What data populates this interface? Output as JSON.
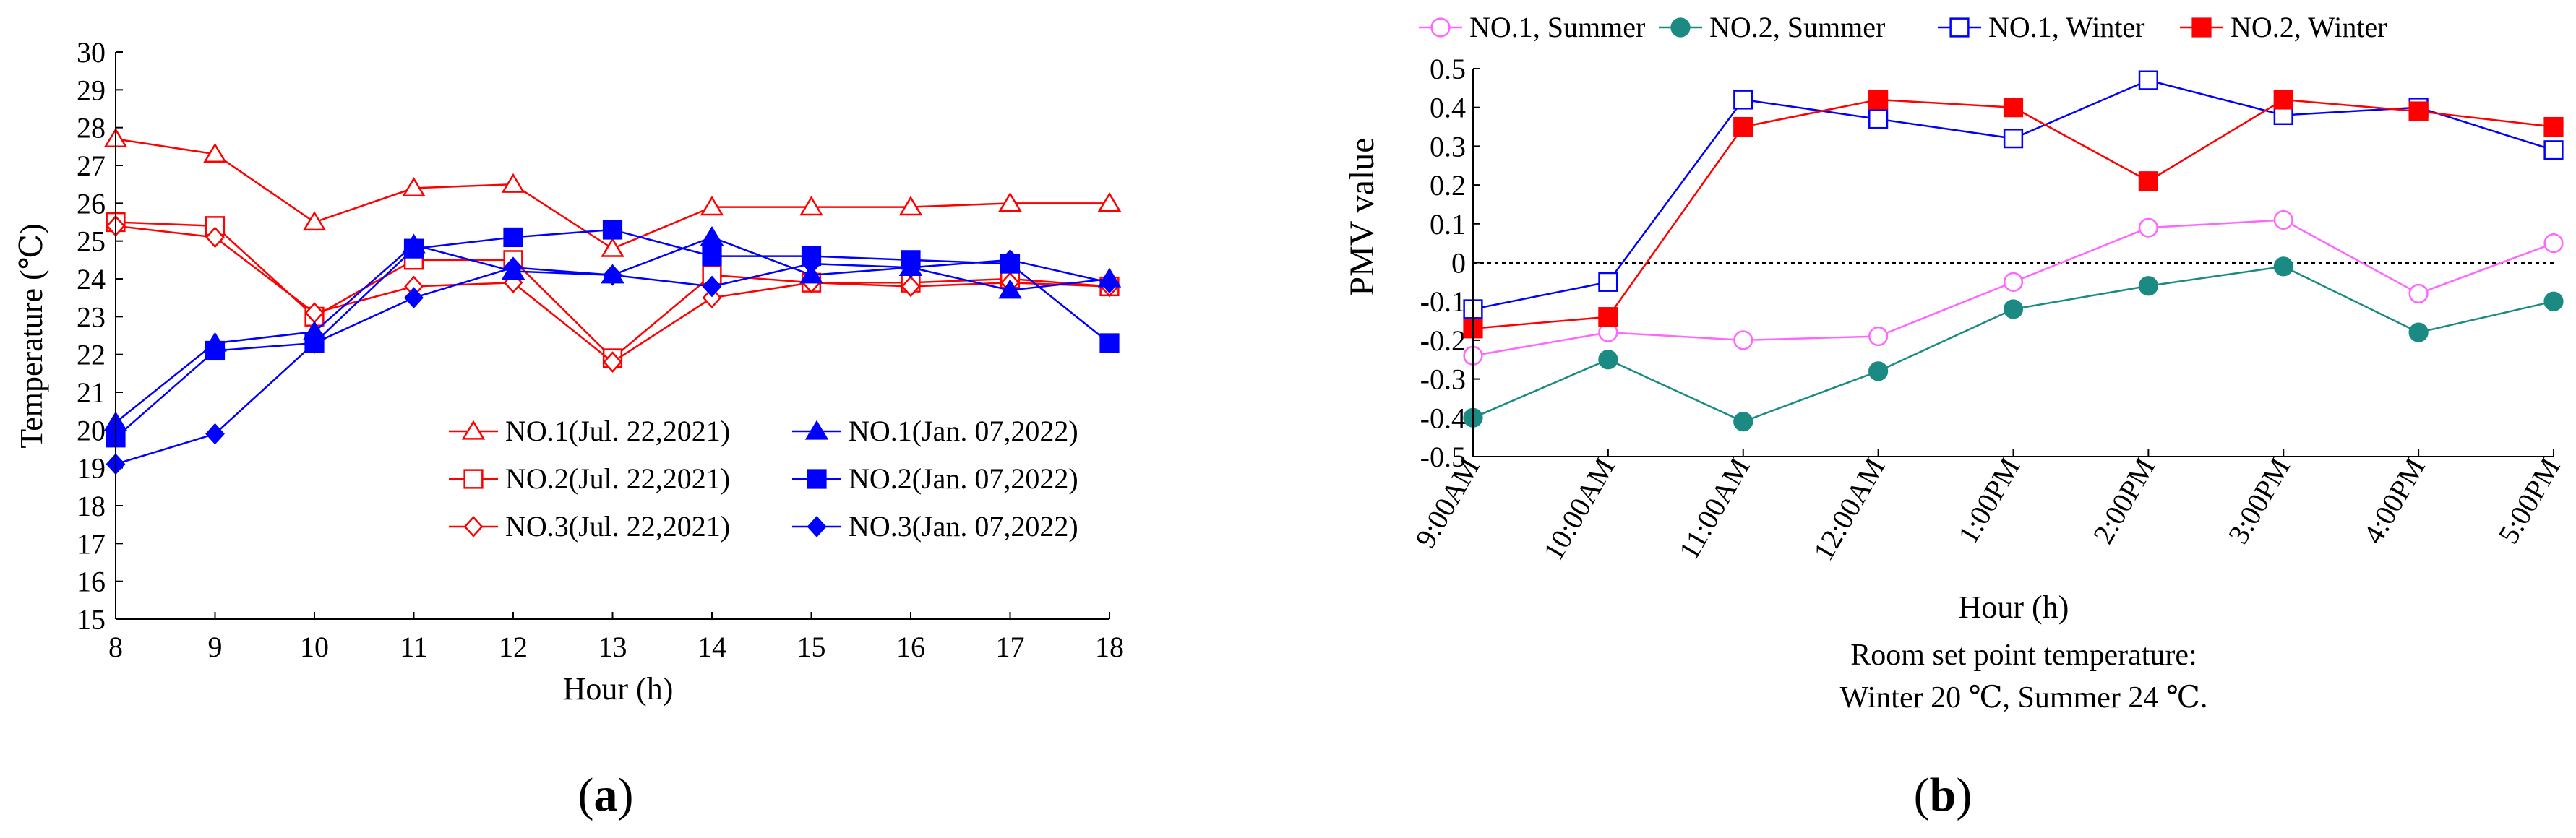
{
  "panel_a": {
    "label_open": "(",
    "label_letter": "a",
    "label_close": ")"
  },
  "panel_b": {
    "label_open": "(",
    "label_letter": "b",
    "label_close": ")",
    "note_line1": "Room set point temperature:",
    "note_line2": "Winter 20 ℃, Summer 24 ℃."
  },
  "chart_data": [
    {
      "id": "a",
      "type": "line",
      "title": "",
      "xlabel": "Hour (h)",
      "ylabel": "Temperature (℃)",
      "x": [
        8,
        9,
        10,
        11,
        12,
        13,
        14,
        15,
        16,
        17,
        18
      ],
      "x_tick_labels": [
        "8",
        "9",
        "10",
        "11",
        "12",
        "13",
        "14",
        "15",
        "16",
        "17",
        "18"
      ],
      "xlim": [
        8,
        18
      ],
      "ylim": [
        15,
        30
      ],
      "y_ticks": [
        15,
        16,
        17,
        18,
        19,
        20,
        21,
        22,
        23,
        24,
        25,
        26,
        27,
        28,
        29,
        30
      ],
      "legend_position": "bottom-right",
      "series": [
        {
          "name": "NO.1(Jul. 22,2021)",
          "color": "#ff0000",
          "marker": "triangle-open",
          "values": [
            27.7,
            27.3,
            25.5,
            26.4,
            26.5,
            24.8,
            25.9,
            25.9,
            25.9,
            26.0,
            26.0
          ]
        },
        {
          "name": "NO.2(Jul. 22,2021)",
          "color": "#ff0000",
          "marker": "square-open",
          "values": [
            25.5,
            25.4,
            23.0,
            24.5,
            24.5,
            21.9,
            24.1,
            23.9,
            23.9,
            24.0,
            23.8
          ]
        },
        {
          "name": "NO.3(Jul. 22,2021)",
          "color": "#ff0000",
          "marker": "diamond-open",
          "values": [
            25.4,
            25.1,
            23.1,
            23.8,
            23.9,
            21.8,
            23.5,
            23.9,
            23.8,
            23.9,
            23.8
          ]
        },
        {
          "name": "NO.1(Jan. 07,2022)",
          "color": "#0000ff",
          "marker": "triangle-filled",
          "values": [
            20.2,
            22.3,
            22.6,
            24.9,
            24.2,
            24.1,
            25.1,
            24.1,
            24.3,
            23.7,
            24.0
          ]
        },
        {
          "name": "NO.2(Jan. 07,2022)",
          "color": "#0000ff",
          "marker": "square-filled",
          "values": [
            19.8,
            22.1,
            22.3,
            24.8,
            25.1,
            25.3,
            24.6,
            24.6,
            24.5,
            24.4,
            22.3
          ]
        },
        {
          "name": "NO.3(Jan. 07,2022)",
          "color": "#0000ff",
          "marker": "diamond-filled",
          "values": [
            19.1,
            19.9,
            22.3,
            23.5,
            24.3,
            24.1,
            23.8,
            24.4,
            24.3,
            24.5,
            23.9
          ]
        }
      ]
    },
    {
      "id": "b",
      "type": "line",
      "title": "",
      "xlabel": "Hour (h)",
      "ylabel": "PMV value",
      "categories": [
        "9:00AM",
        "10:00AM",
        "11:00AM",
        "12:00AM",
        "1:00PM",
        "2:00PM",
        "3:00PM",
        "4:00PM",
        "5:00PM"
      ],
      "ylim": [
        -0.5,
        0.5
      ],
      "y_ticks": [
        -0.5,
        -0.4,
        -0.3,
        -0.2,
        -0.1,
        0,
        0.1,
        0.2,
        0.3,
        0.4,
        0.5
      ],
      "y_tick_labels": [
        "-0.5",
        "-0.4",
        "-0.3",
        "-0.2",
        "-0.1",
        "0",
        "0.1",
        "0.2",
        "0.3",
        "0.4",
        "0.5"
      ],
      "zero_line": "dotted",
      "legend_position": "top",
      "series": [
        {
          "name": "NO.1, Summer",
          "color": "#ff66ff",
          "marker": "circle-open",
          "values": [
            -0.24,
            -0.18,
            -0.2,
            -0.19,
            -0.05,
            0.09,
            0.11,
            -0.08,
            0.05
          ]
        },
        {
          "name": "NO.2, Summer",
          "color": "#1a8a82",
          "marker": "circle-filled",
          "values": [
            -0.4,
            -0.25,
            -0.41,
            -0.28,
            -0.12,
            -0.06,
            -0.01,
            -0.18,
            -0.1
          ]
        },
        {
          "name": "NO.1, Winter",
          "color": "#0000ff",
          "marker": "square-open",
          "values": [
            -0.12,
            -0.05,
            0.42,
            0.37,
            0.32,
            0.47,
            0.38,
            0.4,
            0.29
          ]
        },
        {
          "name": "NO.2, Winter",
          "color": "#ff0000",
          "marker": "square-filled",
          "values": [
            -0.17,
            -0.14,
            0.35,
            0.42,
            0.4,
            0.21,
            0.42,
            0.39,
            0.35
          ]
        }
      ]
    }
  ]
}
